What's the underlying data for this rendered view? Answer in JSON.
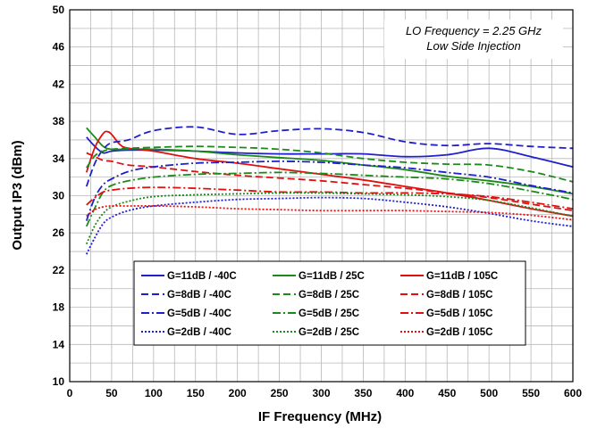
{
  "chart_data": {
    "type": "line",
    "title": "",
    "xlabel": "IF Frequency (MHz)",
    "ylabel": "Output IP3 (dBm)",
    "xlim": [
      0,
      600
    ],
    "ylim": [
      10,
      50
    ],
    "xticks": [
      0,
      50,
      100,
      150,
      200,
      250,
      300,
      350,
      400,
      450,
      500,
      550,
      600
    ],
    "yticks": [
      10,
      14,
      18,
      22,
      26,
      30,
      34,
      38,
      42,
      46,
      50
    ],
    "grid": true,
    "legend_position": "bottom-center",
    "annotations": [
      "LO Frequency = 2.25 GHz",
      "Low Side Injection"
    ],
    "series": [
      {
        "name": "G=11dB / -40C",
        "color": "#1f1fcc",
        "dash": "solid",
        "points": [
          [
            20,
            36.3
          ],
          [
            30,
            35.3
          ],
          [
            40,
            34.6
          ],
          [
            50,
            34.8
          ],
          [
            70,
            34.9
          ],
          [
            100,
            34.9
          ],
          [
            150,
            34.8
          ],
          [
            200,
            34.6
          ],
          [
            250,
            34.5
          ],
          [
            300,
            34.5
          ],
          [
            350,
            34.5
          ],
          [
            400,
            34.2
          ],
          [
            450,
            34.4
          ],
          [
            500,
            35.1
          ],
          [
            550,
            34.2
          ],
          [
            600,
            33.1
          ]
        ]
      },
      {
        "name": "G=11dB / 25C",
        "color": "#1a8a1a",
        "dash": "solid",
        "points": [
          [
            20,
            37.3
          ],
          [
            30,
            36.3
          ],
          [
            40,
            35.3
          ],
          [
            50,
            35.0
          ],
          [
            70,
            35.0
          ],
          [
            100,
            35.0
          ],
          [
            150,
            34.8
          ],
          [
            200,
            34.4
          ],
          [
            250,
            34.1
          ],
          [
            300,
            33.8
          ],
          [
            350,
            33.3
          ],
          [
            400,
            32.8
          ],
          [
            450,
            32.1
          ],
          [
            500,
            31.6
          ],
          [
            550,
            31.0
          ],
          [
            600,
            30.2
          ]
        ]
      },
      {
        "name": "G=11dB / 105C",
        "color": "#e01010",
        "dash": "solid",
        "points": [
          [
            20,
            32.5
          ],
          [
            30,
            35.2
          ],
          [
            40,
            36.7
          ],
          [
            45,
            36.9
          ],
          [
            50,
            36.6
          ],
          [
            60,
            35.5
          ],
          [
            70,
            35.1
          ],
          [
            100,
            34.8
          ],
          [
            150,
            34.0
          ],
          [
            200,
            33.5
          ],
          [
            250,
            32.9
          ],
          [
            300,
            32.3
          ],
          [
            350,
            31.7
          ],
          [
            400,
            31.0
          ],
          [
            450,
            30.3
          ],
          [
            500,
            29.5
          ],
          [
            550,
            28.6
          ],
          [
            600,
            27.8
          ]
        ]
      },
      {
        "name": "G=8dB / -40C",
        "color": "#1f1fcc",
        "dash": "8,4",
        "points": [
          [
            20,
            31.0
          ],
          [
            30,
            33.5
          ],
          [
            40,
            35.0
          ],
          [
            50,
            35.7
          ],
          [
            70,
            36.0
          ],
          [
            100,
            37.0
          ],
          [
            150,
            37.4
          ],
          [
            200,
            36.6
          ],
          [
            250,
            37.0
          ],
          [
            300,
            37.2
          ],
          [
            350,
            36.8
          ],
          [
            400,
            35.8
          ],
          [
            450,
            35.4
          ],
          [
            500,
            35.6
          ],
          [
            550,
            35.3
          ],
          [
            600,
            35.1
          ]
        ]
      },
      {
        "name": "G=8dB / 25C",
        "color": "#1a8a1a",
        "dash": "8,4",
        "points": [
          [
            20,
            33.0
          ],
          [
            30,
            34.3
          ],
          [
            40,
            34.8
          ],
          [
            50,
            35.0
          ],
          [
            70,
            35.1
          ],
          [
            100,
            35.2
          ],
          [
            150,
            35.3
          ],
          [
            200,
            35.2
          ],
          [
            250,
            35.0
          ],
          [
            300,
            34.6
          ],
          [
            350,
            34.0
          ],
          [
            400,
            33.6
          ],
          [
            450,
            33.4
          ],
          [
            500,
            33.3
          ],
          [
            550,
            32.6
          ],
          [
            600,
            31.5
          ]
        ]
      },
      {
        "name": "G=8dB / 105C",
        "color": "#e01010",
        "dash": "8,4",
        "points": [
          [
            20,
            34.6
          ],
          [
            30,
            34.2
          ],
          [
            40,
            33.8
          ],
          [
            50,
            33.7
          ],
          [
            70,
            33.3
          ],
          [
            100,
            33.1
          ],
          [
            150,
            32.6
          ],
          [
            200,
            32.2
          ],
          [
            250,
            31.9
          ],
          [
            300,
            31.6
          ],
          [
            350,
            31.2
          ],
          [
            400,
            30.8
          ],
          [
            450,
            30.3
          ],
          [
            500,
            29.8
          ],
          [
            550,
            29.1
          ],
          [
            600,
            28.4
          ]
        ]
      },
      {
        "name": "G=5dB / -40C",
        "color": "#1f1fcc",
        "dash": "9,3,2,3",
        "points": [
          [
            20,
            27.3
          ],
          [
            30,
            29.8
          ],
          [
            40,
            31.2
          ],
          [
            50,
            31.8
          ],
          [
            70,
            32.6
          ],
          [
            100,
            33.1
          ],
          [
            150,
            33.5
          ],
          [
            200,
            33.6
          ],
          [
            250,
            33.7
          ],
          [
            300,
            33.6
          ],
          [
            350,
            33.3
          ],
          [
            400,
            33.0
          ],
          [
            450,
            32.5
          ],
          [
            500,
            32.0
          ],
          [
            550,
            31.1
          ],
          [
            600,
            30.3
          ]
        ]
      },
      {
        "name": "G=5dB / 25C",
        "color": "#1a8a1a",
        "dash": "9,3,2,3",
        "points": [
          [
            20,
            26.7
          ],
          [
            30,
            28.7
          ],
          [
            40,
            30.4
          ],
          [
            50,
            31.1
          ],
          [
            70,
            31.6
          ],
          [
            100,
            32.0
          ],
          [
            150,
            32.3
          ],
          [
            200,
            32.4
          ],
          [
            250,
            32.5
          ],
          [
            300,
            32.4
          ],
          [
            350,
            32.2
          ],
          [
            400,
            32.0
          ],
          [
            450,
            31.8
          ],
          [
            500,
            31.3
          ],
          [
            550,
            30.5
          ],
          [
            600,
            29.6
          ]
        ]
      },
      {
        "name": "G=5dB / 105C",
        "color": "#e01010",
        "dash": "9,3,2,3",
        "points": [
          [
            20,
            29.0
          ],
          [
            30,
            29.8
          ],
          [
            40,
            30.4
          ],
          [
            50,
            30.6
          ],
          [
            70,
            30.8
          ],
          [
            100,
            30.9
          ],
          [
            150,
            30.8
          ],
          [
            200,
            30.6
          ],
          [
            250,
            30.4
          ],
          [
            300,
            30.4
          ],
          [
            350,
            30.3
          ],
          [
            400,
            30.3
          ],
          [
            450,
            30.2
          ],
          [
            500,
            29.9
          ],
          [
            550,
            29.3
          ],
          [
            600,
            28.6
          ]
        ]
      },
      {
        "name": "G=2dB / -40C",
        "color": "#1f1fcc",
        "dash": "2,2",
        "points": [
          [
            20,
            23.7
          ],
          [
            30,
            25.5
          ],
          [
            40,
            27.0
          ],
          [
            50,
            27.7
          ],
          [
            70,
            28.4
          ],
          [
            100,
            28.9
          ],
          [
            150,
            29.3
          ],
          [
            200,
            29.6
          ],
          [
            250,
            29.7
          ],
          [
            300,
            29.8
          ],
          [
            350,
            29.7
          ],
          [
            400,
            29.3
          ],
          [
            450,
            28.8
          ],
          [
            500,
            28.1
          ],
          [
            550,
            27.3
          ],
          [
            600,
            26.7
          ]
        ]
      },
      {
        "name": "G=2dB / 25C",
        "color": "#1a8a1a",
        "dash": "2,2",
        "points": [
          [
            20,
            24.8
          ],
          [
            30,
            26.8
          ],
          [
            40,
            28.1
          ],
          [
            50,
            28.8
          ],
          [
            70,
            29.4
          ],
          [
            100,
            29.9
          ],
          [
            150,
            30.1
          ],
          [
            200,
            30.2
          ],
          [
            250,
            30.3
          ],
          [
            300,
            30.3
          ],
          [
            350,
            30.2
          ],
          [
            400,
            30.1
          ],
          [
            450,
            29.9
          ],
          [
            500,
            29.5
          ],
          [
            550,
            28.7
          ],
          [
            600,
            27.8
          ]
        ]
      },
      {
        "name": "G=2dB / 105C",
        "color": "#e01010",
        "dash": "2,2",
        "points": [
          [
            20,
            27.8
          ],
          [
            30,
            28.5
          ],
          [
            40,
            28.8
          ],
          [
            50,
            28.9
          ],
          [
            70,
            28.9
          ],
          [
            100,
            28.9
          ],
          [
            150,
            28.8
          ],
          [
            200,
            28.6
          ],
          [
            250,
            28.5
          ],
          [
            300,
            28.4
          ],
          [
            350,
            28.4
          ],
          [
            400,
            28.4
          ],
          [
            450,
            28.3
          ],
          [
            500,
            28.2
          ],
          [
            550,
            27.9
          ],
          [
            600,
            27.4
          ]
        ]
      }
    ]
  }
}
